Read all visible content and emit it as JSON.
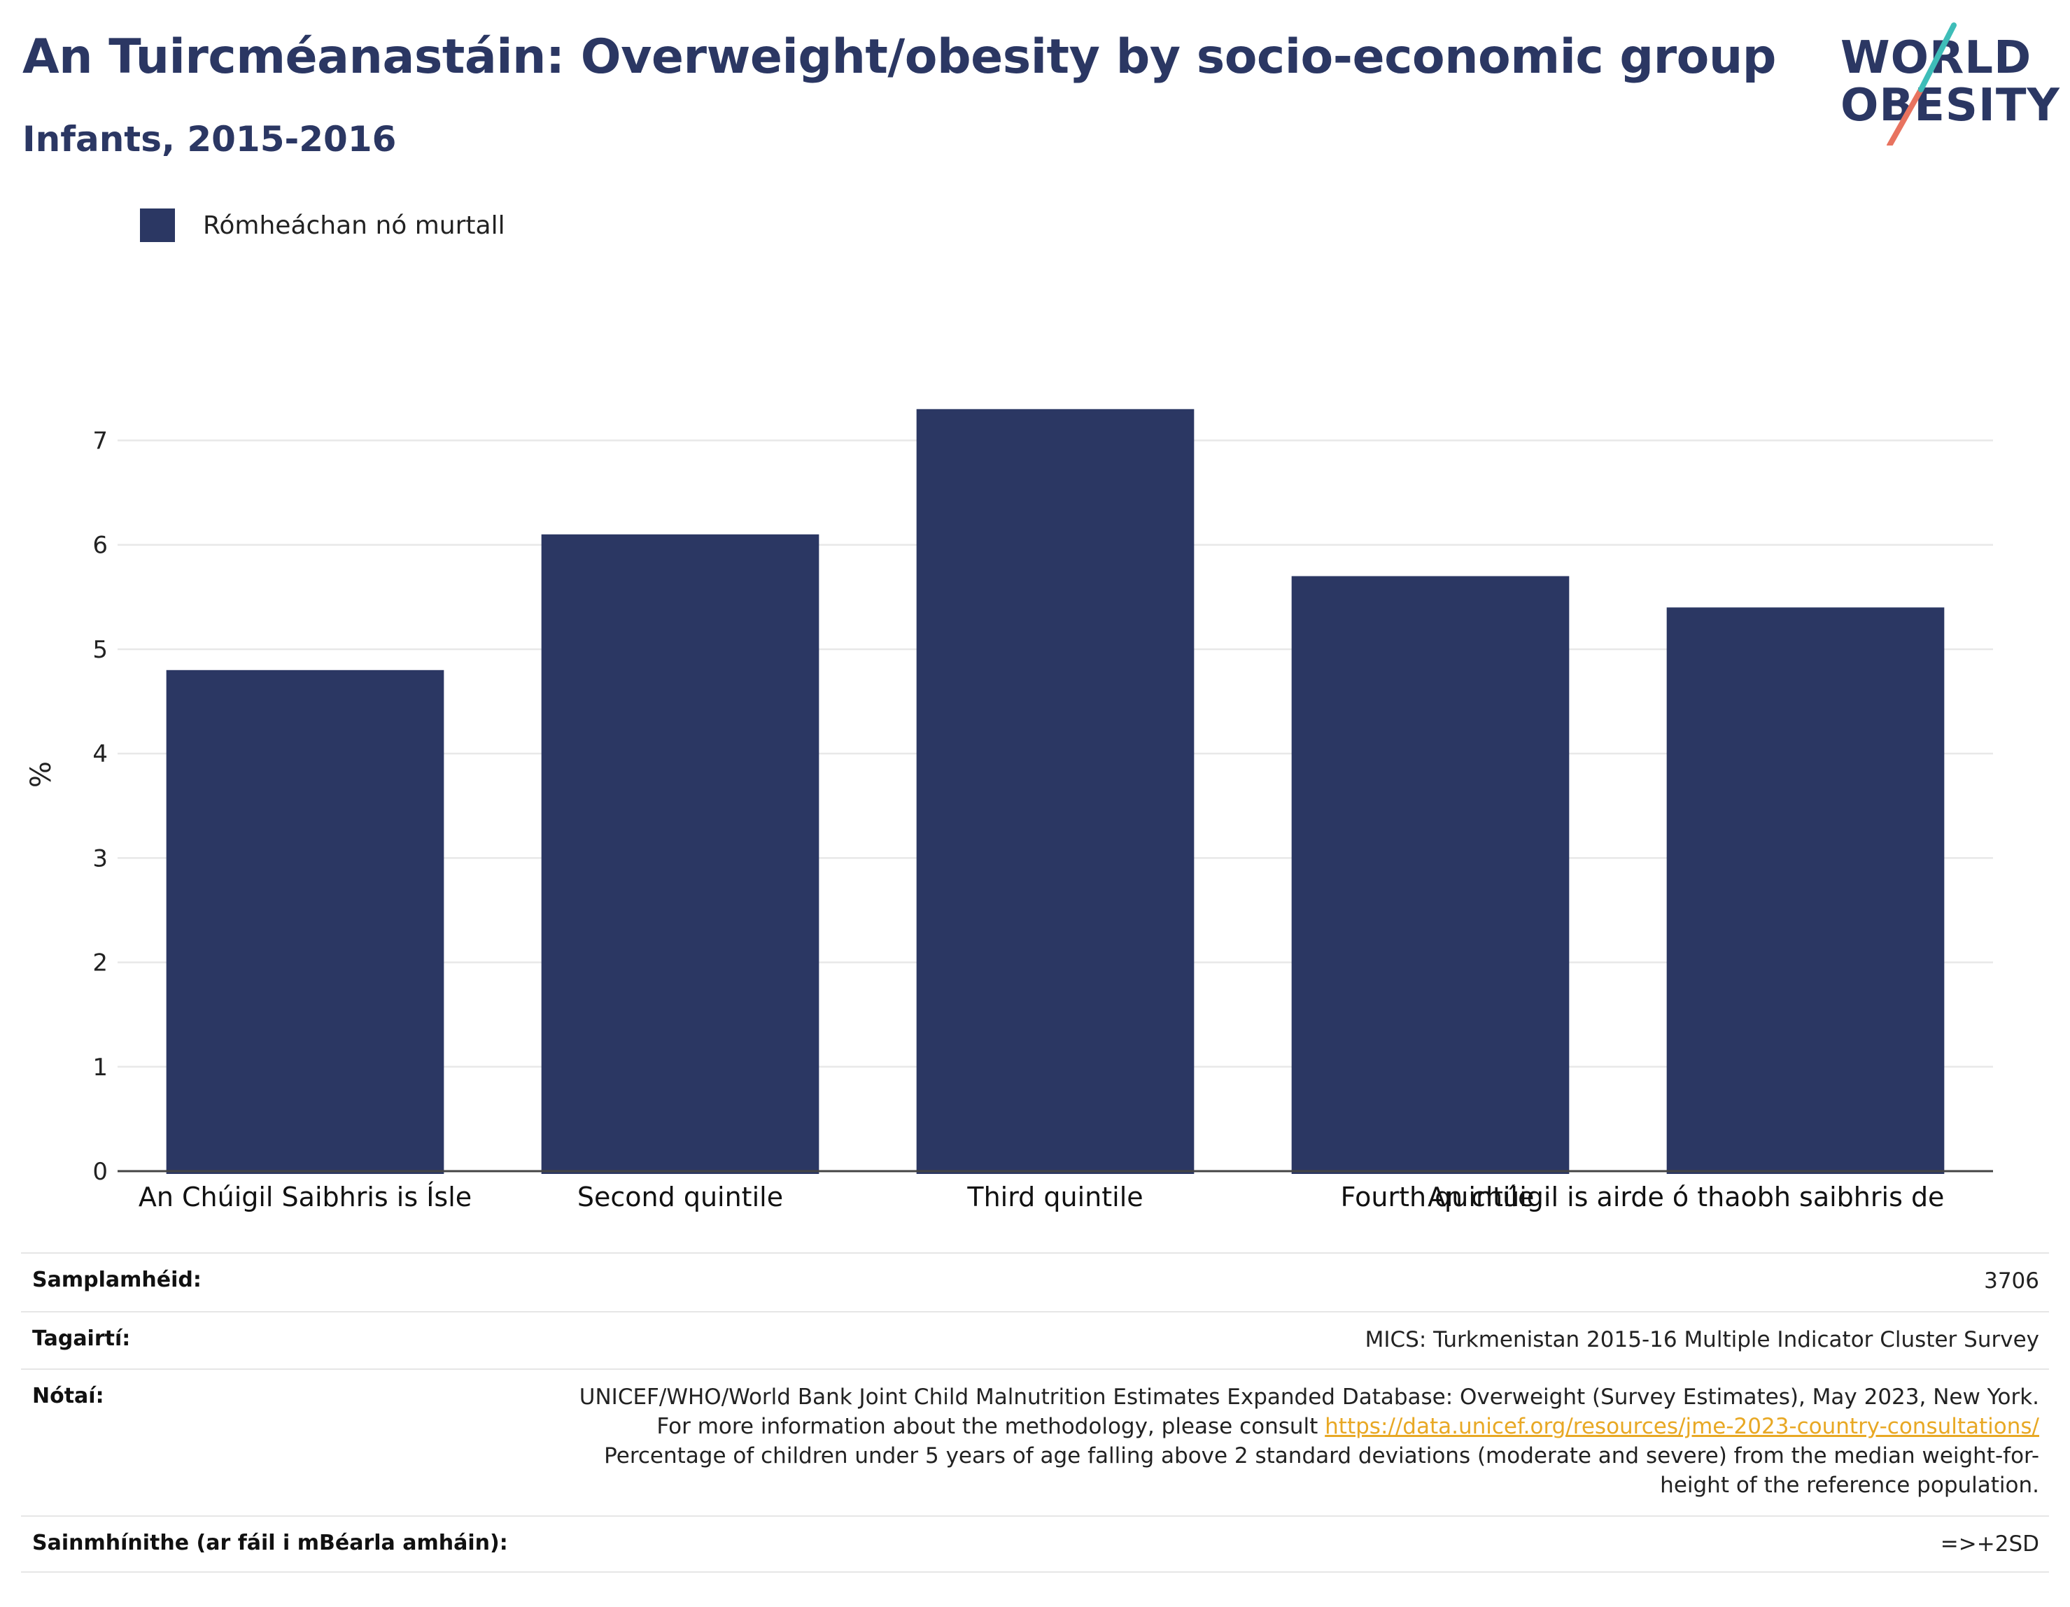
{
  "header": {
    "title": "An Tuircméanastáin: Overweight/obesity by socio-economic group",
    "subtitle": "Infants, 2015-2016"
  },
  "logo": {
    "line1": "WORLD",
    "line2": "OBESITY"
  },
  "legend": {
    "items": [
      {
        "label": "Rómheáchan nó murtall",
        "color": "#2b3763"
      }
    ]
  },
  "chart_data": {
    "type": "bar",
    "categories": [
      "An Chúigil Saibhris is Ísle",
      "Second quintile",
      "Third quintile",
      "Fourth quintile",
      "An chúigil is airde ó thaobh saibhris de"
    ],
    "series": [
      {
        "name": "Rómheáchan nó murtall",
        "values": [
          4.8,
          6.1,
          7.3,
          5.7,
          5.4
        ],
        "color": "#2b3763"
      }
    ],
    "ylabel": "%",
    "ylim": [
      0,
      7.6
    ],
    "yticks": [
      "0",
      "1",
      "2",
      "3",
      "4",
      "5",
      "6",
      "7"
    ],
    "grid": true,
    "legend_position": "top-left"
  },
  "meta": {
    "sample_label": "Samplamhéid:",
    "sample_value": "3706",
    "ref_label": "Tagairtí:",
    "ref_value": "MICS: Turkmenistan 2015-16 Multiple Indicator Cluster Survey",
    "notes_label": "Nótaí:",
    "notes_text_1": "UNICEF/WHO/World Bank Joint Child Malnutrition Estimates Expanded Database: Overweight (Survey Estimates), May 2023, New York. For more information about the methodology, please consult ",
    "notes_link": "https://data.unicef.org/resources/jme-2023-country-consultations/",
    "notes_text_2": "Percentage of children under 5 years of age falling above 2 standard deviations (moderate and severe) from the median weight-for-height of the reference population.",
    "def_label": "Sainmhínithe (ar fáil i mBéarla amháin):",
    "def_value": "=>+2SD"
  }
}
